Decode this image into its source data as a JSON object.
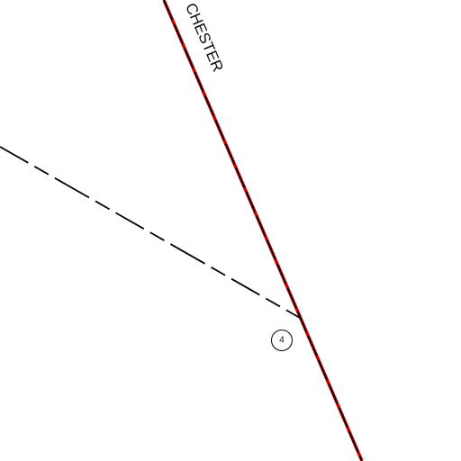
{
  "map": {
    "road_label": "CHESTER",
    "marker_label": "4"
  }
}
